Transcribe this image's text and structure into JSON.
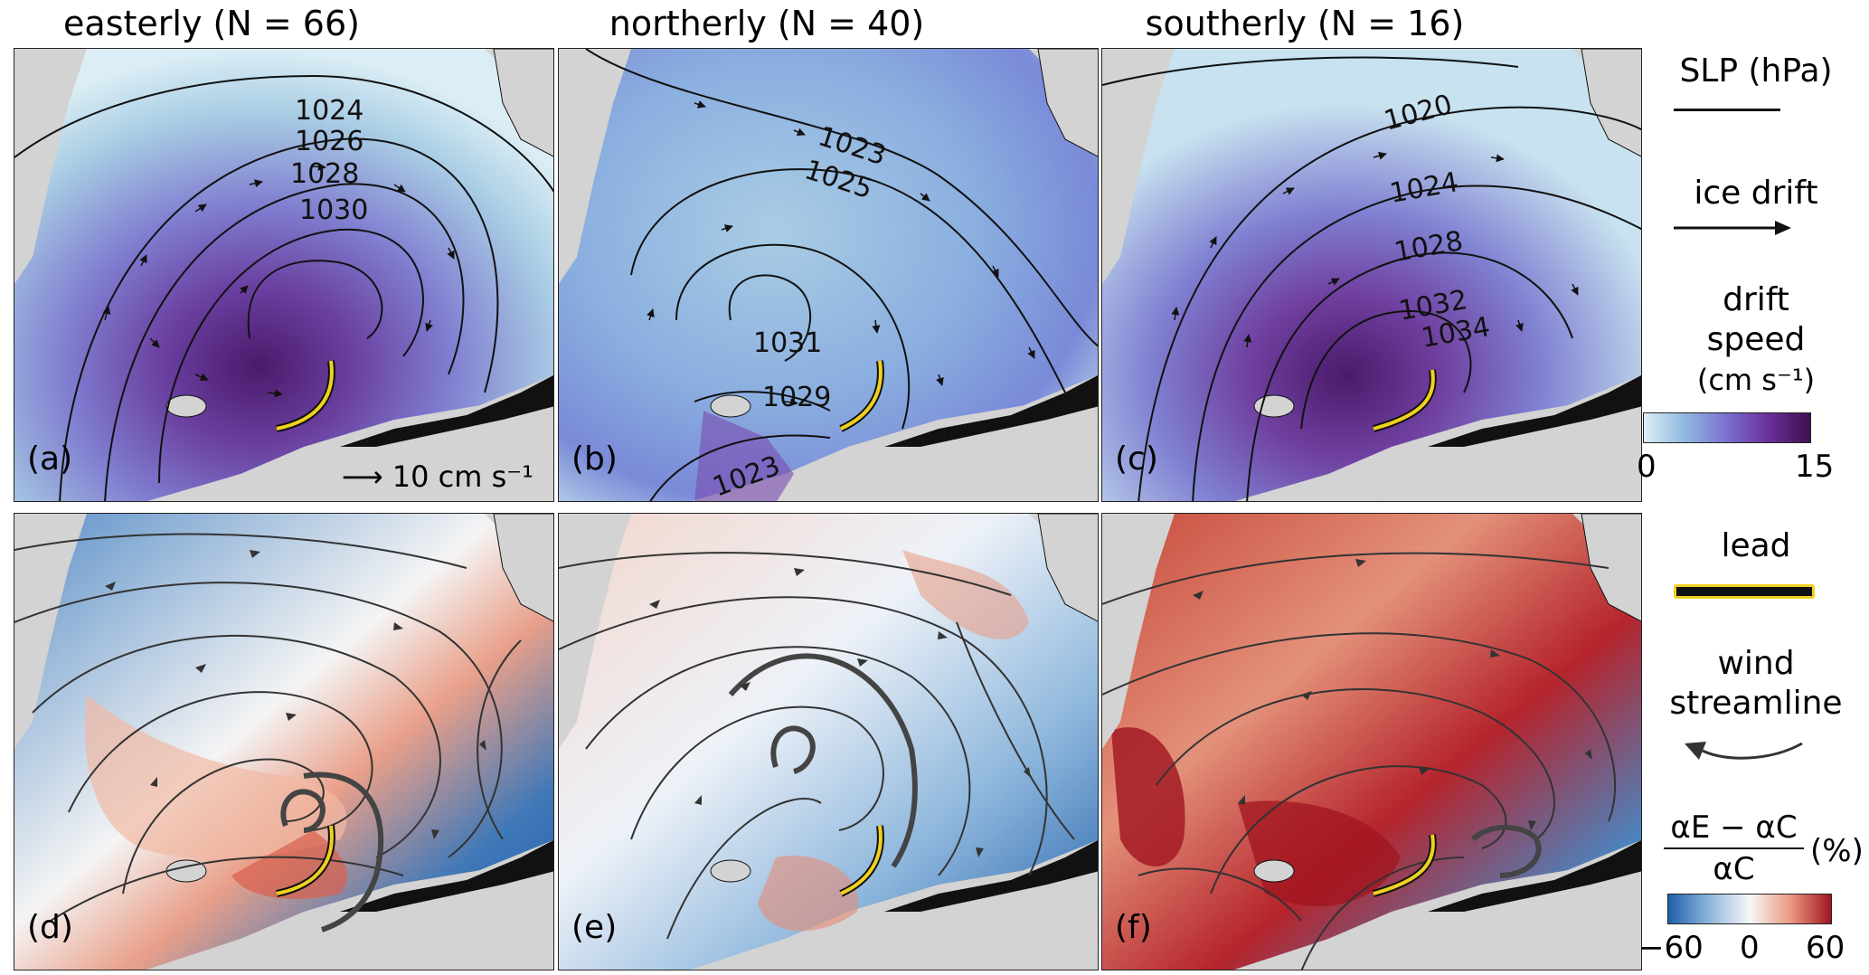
{
  "columns": [
    {
      "title": "easterly (N = 66)"
    },
    {
      "title": "northerly (N = 40)"
    },
    {
      "title": "southerly (N = 16)"
    }
  ],
  "panels": {
    "top": [
      {
        "label": "(a)",
        "contours": [
          "1024",
          "1026",
          "1028",
          "1030"
        ],
        "scale_label": "10 cm s⁻¹"
      },
      {
        "label": "(b)",
        "contours": [
          "1023",
          "1025",
          "1031",
          "1029",
          "1023"
        ]
      },
      {
        "label": "(c)",
        "contours": [
          "1020",
          "1024",
          "1028",
          "1032",
          "1034"
        ]
      }
    ],
    "bottom": [
      {
        "label": "(d)"
      },
      {
        "label": "(e)"
      },
      {
        "label": "(f)"
      }
    ]
  },
  "legend": {
    "slp": "SLP (hPa)",
    "ice_drift": "ice drift",
    "drift_speed_line1": "drift",
    "drift_speed_line2": "speed",
    "drift_speed_unit": "(cm s⁻¹)",
    "drift_ticks": [
      "0",
      "15"
    ],
    "lead": "lead",
    "wind_line1": "wind",
    "wind_line2": "streamline",
    "albedo_numerator": "αE − αC",
    "albedo_denominator": "αC",
    "albedo_unit": "(%)",
    "albedo_ticks": [
      "−60",
      "0",
      "60"
    ]
  },
  "colors": {
    "land": "#d3d3d3",
    "lead": "#f0d020",
    "drift_low": "#dceef5",
    "drift_high": "#3f0f50",
    "diff_neg": "#1f5ea8",
    "diff_pos": "#a0141f"
  }
}
